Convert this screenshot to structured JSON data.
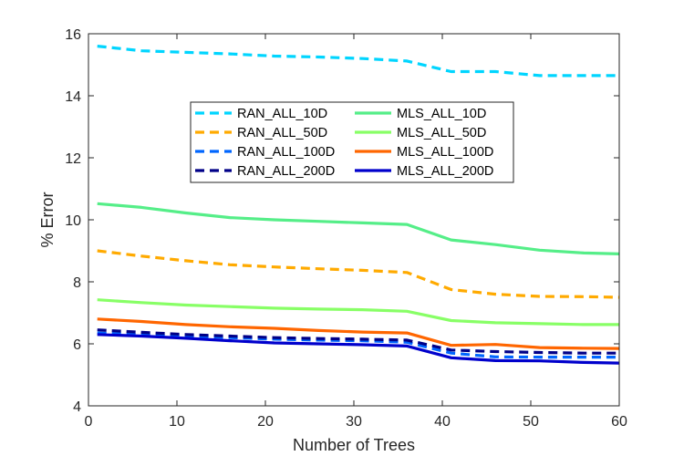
{
  "chart_data": {
    "type": "line",
    "title": "",
    "xlabel": "Number of Trees",
    "ylabel": "% Error",
    "xlim": [
      0,
      60
    ],
    "ylim": [
      4,
      16
    ],
    "xticks": [
      0,
      10,
      20,
      30,
      40,
      50,
      60
    ],
    "yticks": [
      4,
      6,
      8,
      10,
      12,
      14,
      16
    ],
    "grid": false,
    "legend_position": "top-center",
    "legend_columns": 2,
    "x": [
      1,
      6,
      11,
      16,
      21,
      26,
      31,
      36,
      41,
      46,
      51,
      56,
      60
    ],
    "series": [
      {
        "name": "RAN_ALL_10D",
        "color": "#00d5ff",
        "dash": "dashed",
        "values": [
          15.6,
          15.45,
          15.4,
          15.35,
          15.28,
          15.25,
          15.2,
          15.12,
          14.78,
          14.78,
          14.65,
          14.65,
          14.65
        ]
      },
      {
        "name": "RAN_ALL_50D",
        "color": "#ffaa00",
        "dash": "dashed",
        "values": [
          9.0,
          8.83,
          8.68,
          8.55,
          8.48,
          8.42,
          8.37,
          8.3,
          7.75,
          7.6,
          7.53,
          7.52,
          7.5
        ]
      },
      {
        "name": "RAN_ALL_100D",
        "color": "#0066ff",
        "dash": "dashed",
        "values": [
          6.35,
          6.3,
          6.25,
          6.2,
          6.15,
          6.12,
          6.1,
          6.05,
          5.7,
          5.58,
          5.57,
          5.57,
          5.57
        ]
      },
      {
        "name": "RAN_ALL_200D",
        "color": "#000088",
        "dash": "dashed",
        "values": [
          6.45,
          6.37,
          6.3,
          6.25,
          6.2,
          6.17,
          6.15,
          6.12,
          5.8,
          5.75,
          5.72,
          5.7,
          5.7
        ]
      },
      {
        "name": "MLS_ALL_10D",
        "color": "#55ee88",
        "dash": "solid",
        "values": [
          10.52,
          10.4,
          10.22,
          10.07,
          10.0,
          9.95,
          9.9,
          9.85,
          9.35,
          9.2,
          9.02,
          8.93,
          8.9
        ]
      },
      {
        "name": "MLS_ALL_50D",
        "color": "#88ff66",
        "dash": "solid",
        "values": [
          7.42,
          7.33,
          7.25,
          7.2,
          7.15,
          7.12,
          7.1,
          7.05,
          6.75,
          6.68,
          6.65,
          6.62,
          6.62
        ]
      },
      {
        "name": "MLS_ALL_100D",
        "color": "#ff6600",
        "dash": "solid",
        "values": [
          6.8,
          6.72,
          6.62,
          6.55,
          6.5,
          6.43,
          6.38,
          6.35,
          5.95,
          5.98,
          5.88,
          5.86,
          5.85
        ]
      },
      {
        "name": "MLS_ALL_200D",
        "color": "#0000cc",
        "dash": "solid",
        "values": [
          6.3,
          6.25,
          6.18,
          6.1,
          6.03,
          6.0,
          5.97,
          5.93,
          5.55,
          5.46,
          5.45,
          5.4,
          5.38
        ]
      }
    ]
  }
}
